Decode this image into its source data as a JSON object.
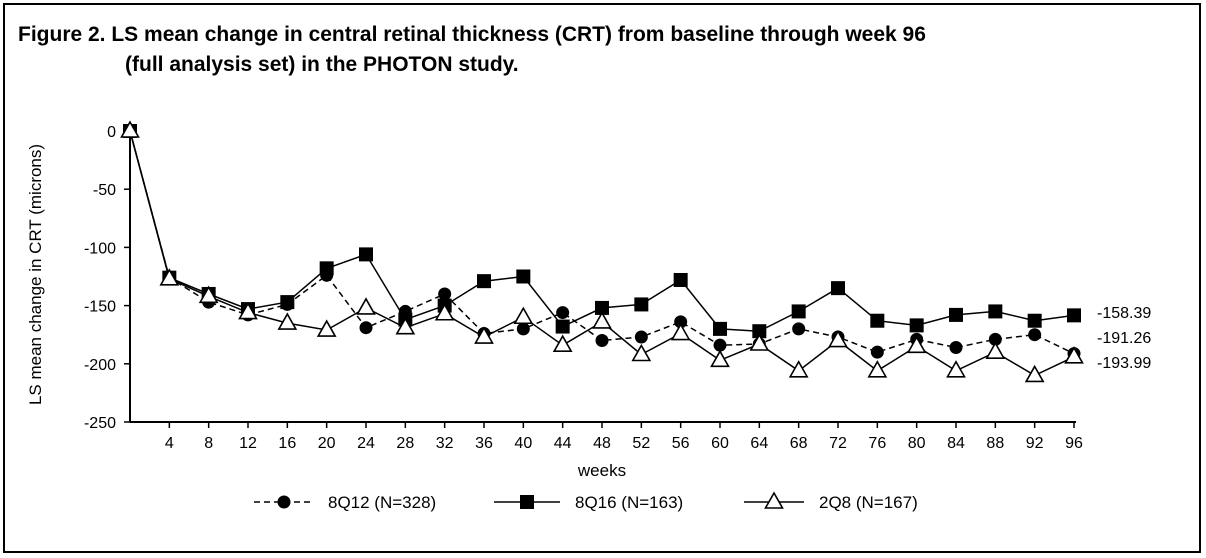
{
  "figure": {
    "title_line1": "Figure 2. LS mean change in central retinal thickness (CRT) from baseline through week 96",
    "title_line2": "(full analysis set) in the PHOTON study."
  },
  "chart_data": {
    "type": "line",
    "title": "Figure 2. LS mean change in central retinal thickness (CRT) from baseline through week 96 (full analysis set) in the PHOTON study.",
    "xlabel": "weeks",
    "ylabel": "LS mean change in CRT (microns)",
    "ylim": [
      -250,
      0
    ],
    "yticks": [
      0,
      -50,
      -100,
      -150,
      -200,
      -250
    ],
    "x": [
      0,
      4,
      8,
      12,
      16,
      20,
      24,
      28,
      32,
      36,
      40,
      44,
      48,
      52,
      56,
      60,
      64,
      68,
      72,
      76,
      80,
      84,
      88,
      92,
      96
    ],
    "xticks": [
      4,
      8,
      12,
      16,
      20,
      24,
      28,
      32,
      36,
      40,
      44,
      48,
      52,
      56,
      60,
      64,
      68,
      72,
      76,
      80,
      84,
      88,
      92,
      96
    ],
    "grid": false,
    "legend_position": "bottom",
    "series": [
      {
        "name": "8Q12 (N=328)",
        "line": "dashed",
        "marker": "circle",
        "color": "#000000",
        "values": [
          0,
          -126,
          -147,
          -158,
          -149,
          -124,
          -169,
          -155,
          -140,
          -174,
          -170,
          -156,
          -180,
          -177,
          -164,
          -184,
          -183,
          -170,
          -177,
          -190,
          -179,
          -186,
          -179,
          -175,
          -191.26
        ]
      },
      {
        "name": "8Q16 (N=163)",
        "line": "solid",
        "marker": "square",
        "color": "#000000",
        "values": [
          0,
          -126,
          -140,
          -153,
          -147,
          -118,
          -106,
          -162,
          -150,
          -129,
          -125,
          -168,
          -152,
          -149,
          -128,
          -170,
          -172,
          -155,
          -135,
          -163,
          -167,
          -158,
          -155,
          -163,
          -158.39
        ]
      },
      {
        "name": "2Q8 (N=167)",
        "line": "solid",
        "marker": "open-triangle",
        "color": "#000000",
        "values": [
          0,
          -127,
          -142,
          -156,
          -165,
          -171,
          -152,
          -169,
          -157,
          -177,
          -160,
          -184,
          -164,
          -192,
          -174,
          -197,
          -183,
          -206,
          -180,
          -206,
          -185,
          -206,
          -190,
          -210,
          -193.99
        ]
      }
    ],
    "end_labels": [
      "-158.39",
      "-191.26",
      "-193.99"
    ]
  }
}
